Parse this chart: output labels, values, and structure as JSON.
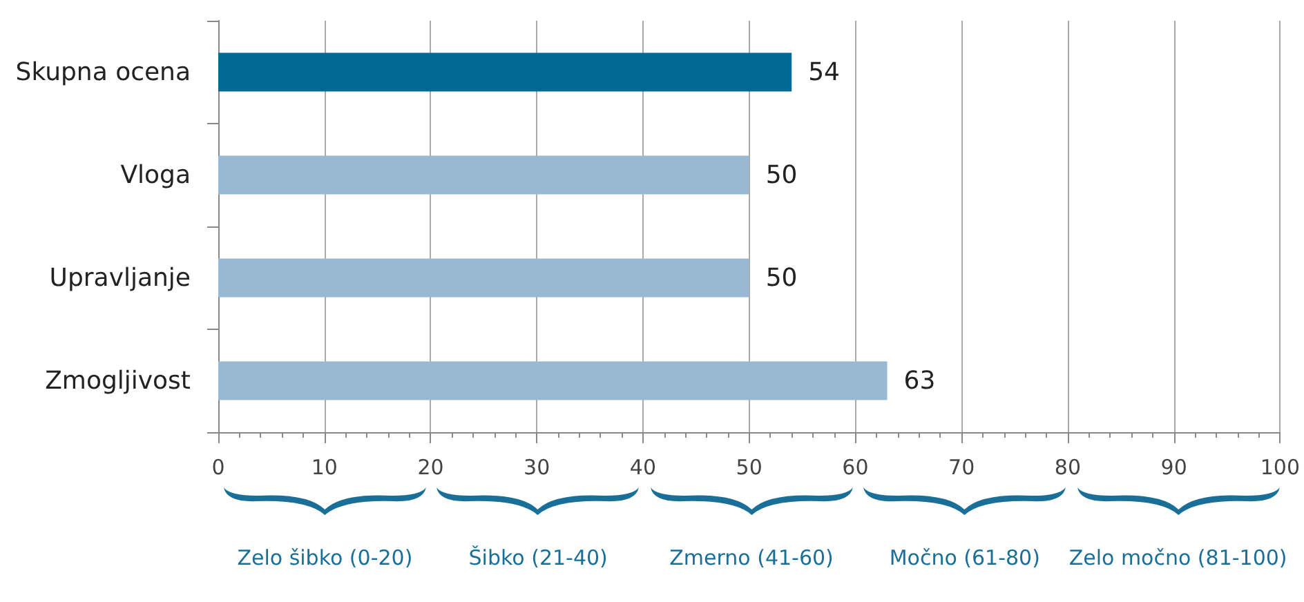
{
  "chart_data": {
    "type": "bar",
    "orientation": "horizontal",
    "categories": [
      "Skupna ocena",
      "Vloga",
      "Upravljanje",
      "Zmogljivost"
    ],
    "values": [
      54,
      50,
      50,
      63
    ],
    "colors": [
      "#006994",
      "#99b9d3",
      "#99b9d3",
      "#99b9d3"
    ],
    "xlim": [
      0,
      100
    ],
    "xticks": [
      0,
      10,
      20,
      30,
      40,
      50,
      60,
      70,
      80,
      90,
      100
    ],
    "grid": "x",
    "data_labels": true,
    "annotations": [
      "Zelo šibko (0-20)",
      "Šibko (21-40)",
      "Zmerno (41-60)",
      "Močno (61-80)",
      "Zelo močno (81-100)"
    ]
  }
}
